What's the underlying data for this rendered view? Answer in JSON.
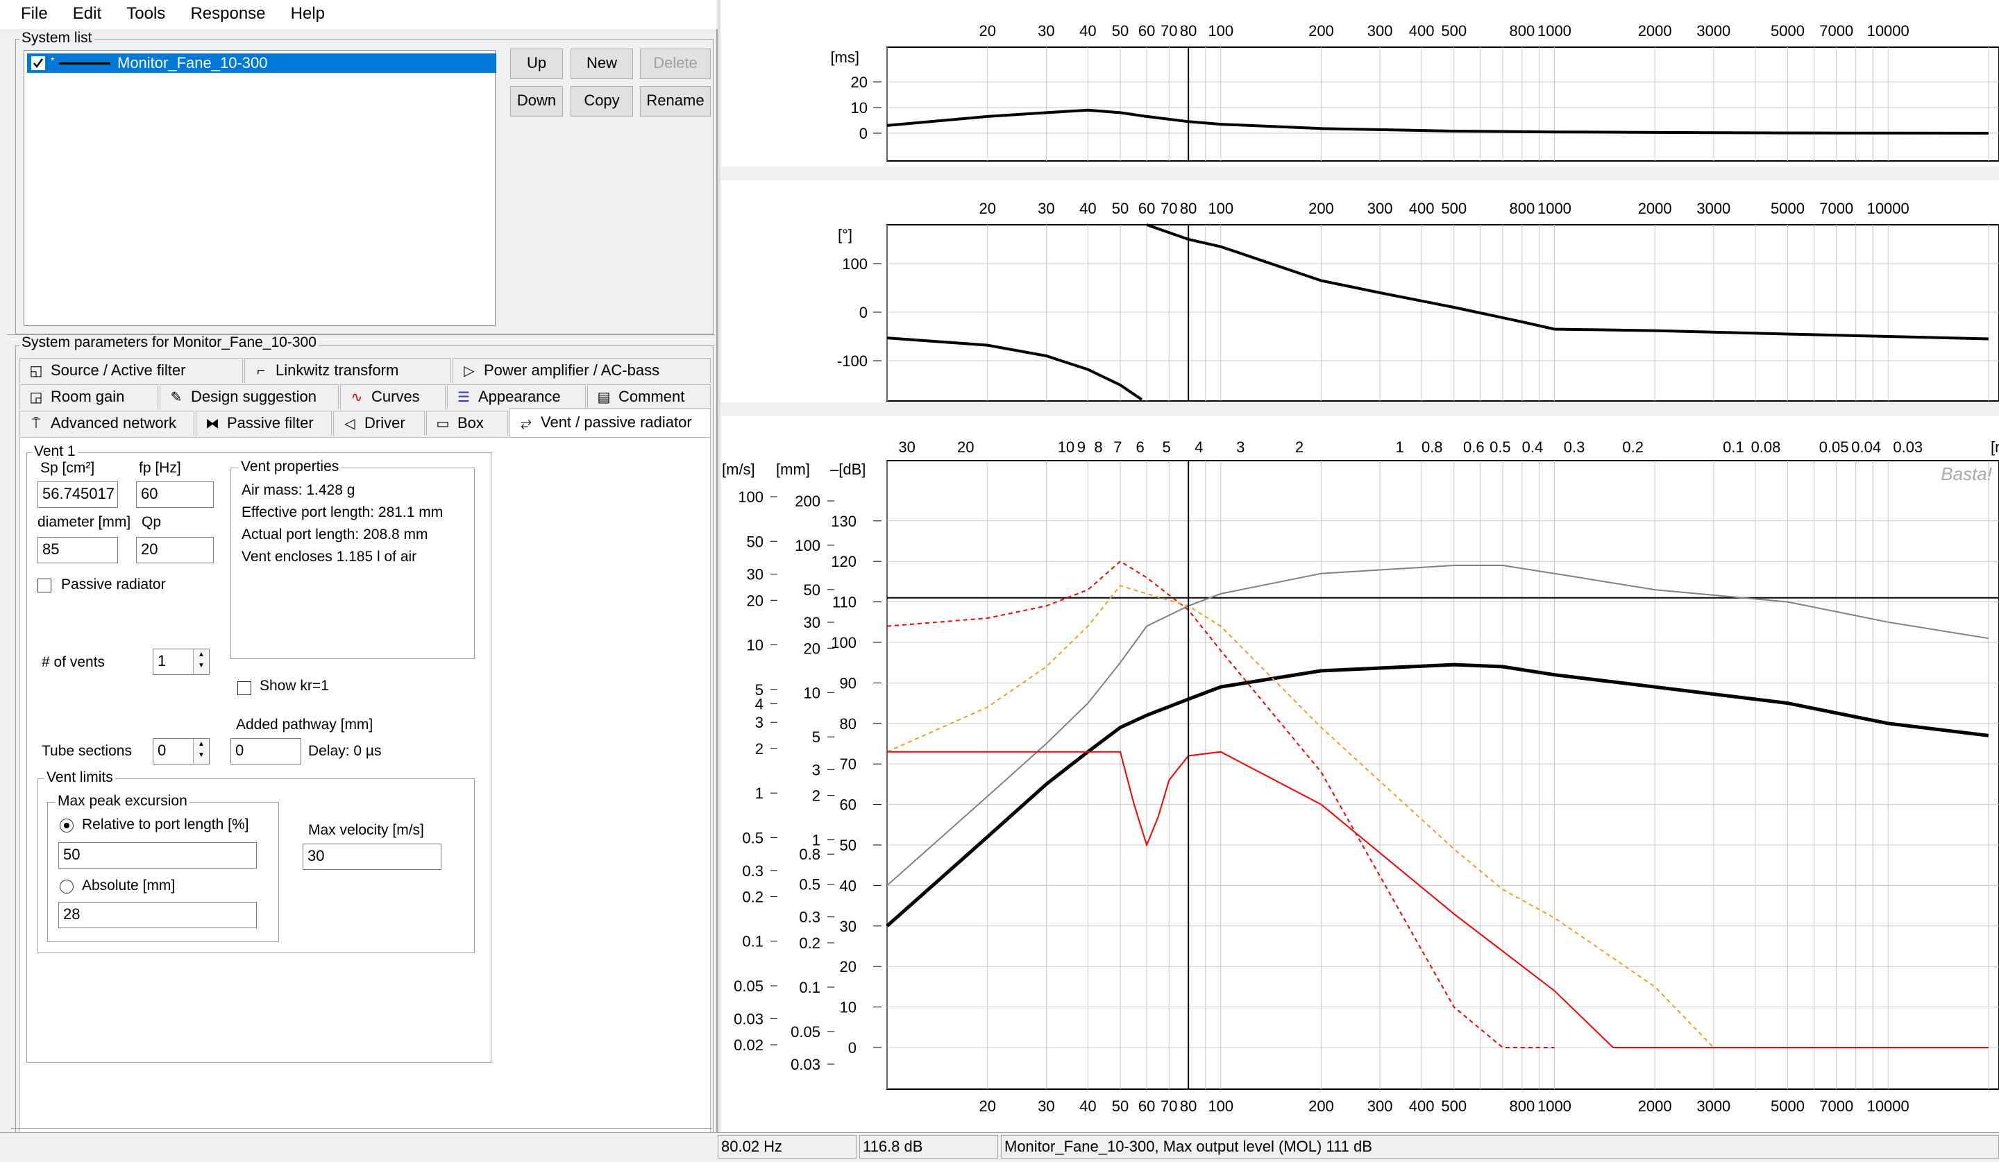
{
  "menu": [
    "File",
    "Edit",
    "Tools",
    "Response",
    "Help"
  ],
  "system_list": {
    "title": "System list",
    "items": [
      {
        "label": "Monitor_Fane_10-300",
        "checked": true,
        "selected": true
      }
    ],
    "buttons": {
      "up": "Up",
      "new": "New",
      "delete": "Delete",
      "down": "Down",
      "copy": "Copy",
      "rename": "Rename"
    }
  },
  "params": {
    "title": "System parameters for Monitor_Fane_10-300",
    "tabs_row1": [
      "Source / Active filter",
      "Linkwitz transform",
      "Power amplifier / AC-bass"
    ],
    "tabs_row2": [
      "Room gain",
      "Design suggestion",
      "Curves",
      "Appearance",
      "Comment"
    ],
    "tabs_row3": [
      "Advanced network",
      "Passive filter",
      "Driver",
      "Box",
      "Vent / passive radiator"
    ]
  },
  "vent": {
    "group_title": "Vent 1",
    "sp_label": "Sp [cm²]",
    "sp_value": "56.745017",
    "fp_label": "fp [Hz]",
    "fp_value": "60",
    "diameter_label": "diameter [mm]",
    "diameter_value": "85",
    "qp_label": "Qp",
    "qp_value": "20",
    "passive_radiator": "Passive radiator",
    "props_title": "Vent properties",
    "props": [
      "Air mass: 1.428 g",
      "Effective port length: 281.1 mm",
      "Actual port length: 208.8 mm",
      "Vent encloses 1.185 l of air"
    ],
    "num_vents_label": "# of vents",
    "num_vents_value": "1",
    "show_kr": "Show kr=1",
    "added_pathway_label": "Added pathway [mm]",
    "added_pathway_value": "0",
    "delay": "Delay: 0 µs",
    "tube_sections_label": "Tube sections",
    "tube_sections_value": "0",
    "limits_title": "Vent limits",
    "max_peak_title": "Max peak excursion",
    "relative_label": "Relative to port length [%]",
    "relative_value": "50",
    "absolute_label": "Absolute [mm]",
    "absolute_value": "28",
    "max_velocity_label": "Max velocity [m/s]",
    "max_velocity_value": "30"
  },
  "status": {
    "freq": "80.02 Hz",
    "level": "116.8 dB",
    "message": "Monitor_Fane_10-300, Max output level (MOL) 111 dB"
  },
  "colors": {
    "black_curve": "#000000",
    "gray_curve": "#808080",
    "red": "#ff0000",
    "orange": "#ffa500",
    "selection": "#0078d7"
  },
  "chart_data": [
    {
      "type": "line",
      "x_scale": "log",
      "x_unit": "Hz",
      "x_ticks": [
        20,
        30,
        40,
        50,
        60,
        70,
        80,
        100,
        200,
        300,
        400,
        500,
        800,
        1000,
        2000,
        3000,
        5000,
        7000,
        10000
      ],
      "y_unit": "[ms]",
      "y_ticks": [
        20,
        10,
        0
      ],
      "cursor_hz": 80,
      "series": [
        {
          "color": "black",
          "x": [
            10,
            20,
            30,
            40,
            50,
            60,
            80,
            100,
            200,
            500,
            1000,
            2000,
            5000,
            20000
          ],
          "y": [
            3,
            6.5,
            8,
            9,
            8,
            6.5,
            4.5,
            3.5,
            1.8,
            0.8,
            0.5,
            0.3,
            0.1,
            0
          ]
        }
      ]
    },
    {
      "type": "line",
      "x_scale": "log",
      "x_unit": "Hz",
      "x_ticks": [
        20,
        30,
        40,
        50,
        60,
        70,
        80,
        100,
        200,
        300,
        400,
        500,
        800,
        1000,
        2000,
        3000,
        5000,
        7000,
        10000
      ],
      "y_unit": "[°]",
      "y_ticks": [
        100,
        0,
        -100
      ],
      "cursor_hz": 80,
      "series": [
        {
          "color": "black",
          "x": [
            10,
            20,
            30,
            40,
            50,
            58
          ],
          "y": [
            -53,
            -68,
            -90,
            -118,
            -150,
            -180
          ]
        },
        {
          "color": "black",
          "x": [
            60,
            80,
            100,
            200,
            300,
            500,
            800,
            1000,
            2000,
            5000,
            10000,
            20000
          ],
          "y": [
            180,
            150,
            135,
            65,
            40,
            10,
            -20,
            -35,
            -38,
            -45,
            -50,
            -55
          ]
        }
      ]
    },
    {
      "type": "line",
      "x_scale": "log",
      "x_unit": "Hz",
      "x_ticks": [
        20,
        30,
        40,
        50,
        60,
        70,
        80,
        100,
        200,
        300,
        400,
        500,
        800,
        1000,
        2000,
        3000,
        5000,
        7000,
        10000
      ],
      "top_axis_label_unit": "[m]",
      "top_ticks": [
        "30",
        "20",
        "10",
        "9",
        "8",
        "7",
        "6",
        "5",
        "4",
        "3",
        "2",
        "1",
        "0.8",
        "0.6",
        "0.5",
        "0.4",
        "0.3",
        "0.2",
        "0.1",
        "0.08",
        "0.05",
        "0.04",
        "0.03"
      ],
      "y_axes": {
        "m_s": {
          "label": "[m/s]",
          "ticks": [
            "100",
            "50",
            "30",
            "20",
            "10",
            "5",
            "4",
            "3",
            "2",
            "1",
            "0.5",
            "0.3",
            "0.2",
            "0.1",
            "0.05",
            "0.03",
            "0.02"
          ]
        },
        "mm": {
          "label": "[mm]",
          "ticks": [
            "200",
            "100",
            "50",
            "30",
            "20",
            "10",
            "5",
            "3",
            "2",
            "1",
            "0.8",
            "0.5",
            "0.3",
            "0.2",
            "0.1",
            "0.05",
            "0.03"
          ]
        },
        "dB": {
          "label": "[dB]",
          "ticks": [
            130,
            120,
            110,
            100,
            90,
            80,
            70,
            60,
            50,
            40,
            30,
            20,
            10,
            0
          ]
        }
      },
      "watermark": "Basta!",
      "cursor_hz": 80,
      "mol_line_db": 111,
      "series": [
        {
          "color": "black",
          "unit": "dB",
          "x": [
            10,
            20,
            30,
            40,
            50,
            60,
            80,
            100,
            200,
            500,
            700,
            1000,
            2000,
            5000,
            10000,
            20000
          ],
          "y": [
            30,
            52,
            65,
            73,
            79,
            82,
            86,
            89,
            93,
            94.5,
            94,
            92,
            89,
            85,
            80,
            77
          ]
        },
        {
          "color": "gray",
          "unit": "dB",
          "x": [
            10,
            20,
            30,
            40,
            50,
            60,
            80,
            100,
            200,
            500,
            700,
            1000,
            2000,
            5000,
            10000,
            20000
          ],
          "y": [
            40,
            62,
            75,
            85,
            95,
            104,
            109,
            112,
            117,
            119,
            119,
            117,
            113,
            110,
            105,
            101
          ]
        },
        {
          "color": "red",
          "style": "dashed",
          "unit": "dB",
          "x": [
            10,
            20,
            30,
            40,
            50,
            60,
            80,
            100,
            200,
            500,
            700,
            1000
          ],
          "y": [
            104,
            106,
            109,
            113,
            120,
            116,
            108,
            98,
            68,
            10,
            0,
            0
          ]
        },
        {
          "color": "orange",
          "style": "dashed",
          "unit": "dB",
          "x": [
            10,
            20,
            30,
            40,
            50,
            60,
            80,
            100,
            200,
            500,
            700,
            1000,
            2000,
            3000,
            20000
          ],
          "y": [
            73,
            84,
            94,
            104,
            114,
            112,
            109,
            104,
            79,
            49,
            39,
            32,
            15,
            0,
            0
          ]
        },
        {
          "color": "red",
          "style": "solid",
          "unit": "dB",
          "x": [
            10,
            30,
            40,
            50,
            55,
            60,
            65,
            70,
            80,
            100,
            200,
            500,
            1000,
            1500,
            20000
          ],
          "y": [
            73,
            73,
            73,
            73,
            60,
            50,
            57,
            66,
            72,
            73,
            60,
            33,
            14,
            0,
            0
          ]
        }
      ]
    }
  ]
}
